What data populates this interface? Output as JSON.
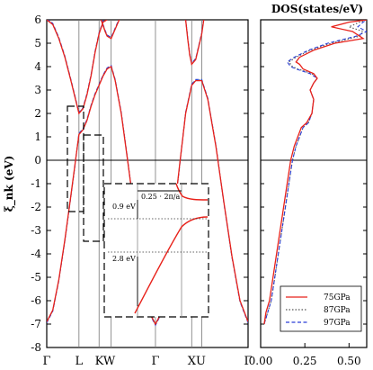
{
  "chart_data": [
    {
      "type": "line",
      "title": "",
      "ylabel": "ξ_nk (eV)",
      "ylim": [
        -8,
        6
      ],
      "y_ticks": [
        "6",
        "5",
        "4",
        "3",
        "2",
        "1",
        "0",
        "-1",
        "-2",
        "-3",
        "-4",
        "-5",
        "-6",
        "-7",
        "-8"
      ],
      "x_labels": [
        "Γ",
        "L",
        "K",
        "W",
        "Γ",
        "X",
        "U",
        "Γ"
      ],
      "x_label_text": [
        "Γ",
        "L",
        "KW",
        "Γ",
        "XU",
        "Γ"
      ],
      "fermi_level": 0,
      "x_path_positions": [
        0,
        0.16,
        0.26,
        0.32,
        0.54,
        0.72,
        0.77,
        1.0
      ],
      "series": [
        {
          "name": "75GPa",
          "color": "#e8211a",
          "style": "solid",
          "bands": [
            {
              "x": [
                0,
                0.03,
                0.06,
                0.09,
                0.12,
                0.14,
                0.16,
                0.18,
                0.2,
                0.22,
                0.24,
                0.26,
                0.28,
                0.3,
                0.32,
                0.34,
                0.37,
                0.4,
                0.44,
                0.48,
                0.51,
                0.54,
                0.57,
                0.6,
                0.63,
                0.66,
                0.69,
                0.72,
                0.74,
                0.77,
                0.8,
                0.84,
                0.88,
                0.92,
                0.96,
                1.0
              ],
              "y": [
                -6.9,
                -6.4,
                -5.1,
                -3.4,
                -1.5,
                -0.2,
                1.1,
                1.3,
                1.7,
                2.3,
                2.8,
                3.2,
                3.6,
                3.9,
                4.0,
                3.4,
                2.0,
                0.1,
                -2.5,
                -5.0,
                -6.5,
                -7.0,
                -6.5,
                -5.0,
                -2.5,
                -0.2,
                2.0,
                3.2,
                3.4,
                3.4,
                2.6,
                0.6,
                -1.8,
                -4.1,
                -6.0,
                -6.9
              ]
            },
            {
              "x": [
                0,
                0.03,
                0.06,
                0.09,
                0.12,
                0.14,
                0.16,
                0.18,
                0.2,
                0.22,
                0.24,
                0.26,
                0.28,
                0.3
              ],
              "y": [
                6.0,
                5.8,
                5.2,
                4.4,
                3.4,
                2.7,
                2.0,
                2.2,
                2.8,
                3.6,
                4.6,
                5.4,
                5.9,
                6.0
              ]
            },
            {
              "x": [
                0.69,
                0.7,
                0.71,
                0.72,
                0.74,
                0.77,
                0.78
              ],
              "y": [
                6.0,
                5.2,
                4.5,
                4.1,
                4.3,
                5.4,
                6.0
              ]
            },
            {
              "x": [
                0.27,
                0.29,
                0.3,
                0.32,
                0.34,
                0.36
              ],
              "y": [
                6.0,
                5.5,
                5.3,
                5.2,
                5.6,
                6.0
              ]
            }
          ]
        },
        {
          "name": "87GPa",
          "color": "#555555",
          "style": "dotted"
        },
        {
          "name": "97GPa",
          "color": "#2a3fd6",
          "style": "dashed"
        }
      ],
      "inset": {
        "annotations": [
          "0.25 · 2π/a",
          "0.9 eV",
          "2.8 eV"
        ],
        "dx_reciprocal": 0.25,
        "gap_small_eV": 0.9,
        "gap_large_eV": 2.8
      }
    },
    {
      "type": "line",
      "title": "DOS(states/eV)",
      "xlim": [
        0,
        0.6
      ],
      "x_ticks": [
        "0.00",
        "0.25",
        "0.50"
      ],
      "ylim": [
        -8,
        6
      ],
      "series": [
        {
          "name": "75GPa",
          "color": "#e8211a",
          "style": "solid",
          "x": [
            0.02,
            0.03,
            0.05,
            0.07,
            0.09,
            0.11,
            0.13,
            0.15,
            0.17,
            0.19,
            0.21,
            0.23,
            0.26,
            0.29,
            0.3,
            0.28,
            0.3,
            0.32,
            0.3,
            0.27,
            0.24,
            0.22,
            0.2,
            0.22,
            0.3,
            0.42,
            0.58,
            0.52,
            0.4,
            0.5,
            0.6
          ],
          "y": [
            -7.0,
            -6.5,
            -6.0,
            -5.0,
            -4.0,
            -3.0,
            -2.0,
            -1.0,
            0.0,
            0.6,
            1.0,
            1.4,
            1.6,
            2.0,
            2.6,
            3.0,
            3.3,
            3.5,
            3.7,
            3.8,
            3.9,
            4.1,
            4.2,
            4.4,
            4.7,
            5.0,
            5.2,
            5.5,
            5.7,
            5.9,
            6.0
          ]
        },
        {
          "name": "87GPa",
          "color": "#555555",
          "style": "dotted",
          "x": [
            0.02,
            0.04,
            0.06,
            0.08,
            0.1,
            0.12,
            0.14,
            0.16,
            0.18,
            0.2,
            0.22,
            0.24,
            0.27,
            0.29,
            0.3,
            0.28,
            0.3,
            0.32,
            0.29,
            0.25,
            0.21,
            0.18,
            0.16,
            0.2,
            0.28,
            0.4,
            0.56,
            0.58,
            0.5,
            0.56,
            0.6
          ],
          "y": [
            -7.0,
            -6.5,
            -6.0,
            -5.0,
            -4.0,
            -3.0,
            -2.0,
            -1.0,
            0.0,
            0.6,
            1.0,
            1.4,
            1.6,
            2.0,
            2.6,
            3.0,
            3.3,
            3.5,
            3.7,
            3.8,
            3.9,
            4.0,
            4.2,
            4.4,
            4.7,
            5.0,
            5.3,
            5.5,
            5.7,
            5.9,
            6.0
          ]
        },
        {
          "name": "97GPa",
          "color": "#2a3fd6",
          "style": "dashed",
          "x": [
            0.02,
            0.04,
            0.06,
            0.08,
            0.1,
            0.12,
            0.14,
            0.16,
            0.18,
            0.2,
            0.22,
            0.24,
            0.27,
            0.29,
            0.3,
            0.28,
            0.3,
            0.32,
            0.28,
            0.24,
            0.2,
            0.17,
            0.15,
            0.19,
            0.27,
            0.38,
            0.54,
            0.6,
            0.55,
            0.58,
            0.6
          ],
          "y": [
            -7.0,
            -6.5,
            -6.0,
            -5.0,
            -4.0,
            -3.0,
            -2.0,
            -1.0,
            0.0,
            0.6,
            1.0,
            1.4,
            1.6,
            2.0,
            2.6,
            3.0,
            3.3,
            3.5,
            3.7,
            3.8,
            3.9,
            4.0,
            4.2,
            4.4,
            4.7,
            5.0,
            5.3,
            5.5,
            5.7,
            5.9,
            6.0
          ]
        }
      ],
      "legend": {
        "placement": "bottom-right",
        "entries": [
          "75GPa",
          "87GPa",
          "97GPa"
        ]
      }
    }
  ]
}
